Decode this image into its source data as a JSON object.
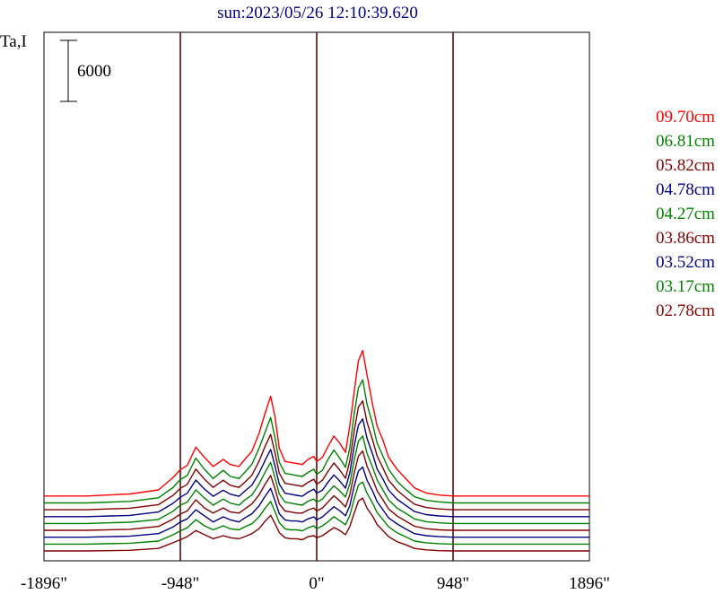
{
  "chart_data": {
    "type": "line",
    "title": "sun:2023/05/26 12:10:39.620",
    "ylabel": "Ta,I",
    "scale_bar_label": "6000",
    "xlim": [
      -1896,
      1896
    ],
    "x_ticks": [
      {
        "value": -1896,
        "label": "-1896\""
      },
      {
        "value": -948,
        "label": "-948\""
      },
      {
        "value": 0,
        "label": "0\""
      },
      {
        "value": 948,
        "label": "948\""
      },
      {
        "value": 1896,
        "label": "1896\""
      }
    ],
    "vertical_lines": [
      -948,
      0,
      948
    ],
    "grid": false,
    "legend_position": "right",
    "x": [
      -1896,
      -1600,
      -1300,
      -1100,
      -1000,
      -948,
      -900,
      -840,
      -780,
      -720,
      -650,
      -600,
      -540,
      -500,
      -450,
      -400,
      -360,
      -320,
      -290,
      -260,
      -220,
      -180,
      -140,
      -100,
      -60,
      -20,
      0,
      40,
      80,
      120,
      160,
      200,
      230,
      260,
      290,
      320,
      350,
      390,
      420,
      460,
      500,
      560,
      620,
      680,
      760,
      850,
      948,
      1000,
      1100,
      1300,
      1600,
      1896
    ],
    "series": [
      {
        "name": "09.70cm",
        "color": "#ff0000",
        "offset": 5400,
        "values": [
          0,
          0,
          200,
          600,
          1800,
          2600,
          3000,
          4800,
          3800,
          2900,
          3600,
          3100,
          2900,
          3600,
          4400,
          6200,
          8100,
          9800,
          7800,
          4700,
          3400,
          3300,
          3200,
          3100,
          3600,
          3900,
          3400,
          3800,
          4900,
          5900,
          5200,
          4300,
          6900,
          10200,
          13300,
          14300,
          11900,
          8900,
          6900,
          5500,
          3800,
          2600,
          1700,
          800,
          300,
          100,
          0,
          0,
          0,
          0,
          0,
          0
        ]
      },
      {
        "name": "06.81cm",
        "color": "#008000",
        "offset": 4725,
        "values": [
          0,
          0,
          150,
          500,
          1500,
          2300,
          2700,
          4400,
          3300,
          2400,
          3200,
          2600,
          2400,
          3000,
          3800,
          5400,
          6900,
          8400,
          6400,
          4000,
          2900,
          2800,
          2700,
          2600,
          3000,
          3300,
          2800,
          3200,
          4300,
          5200,
          4400,
          3500,
          5400,
          8700,
          11300,
          12100,
          9700,
          7700,
          5900,
          4600,
          3300,
          2100,
          1300,
          600,
          250,
          100,
          0,
          0,
          0,
          0,
          0,
          0
        ]
      },
      {
        "name": "05.82cm",
        "color": "#800000",
        "offset": 4050,
        "values": [
          0,
          0,
          150,
          500,
          1400,
          2100,
          2500,
          4000,
          3000,
          2200,
          2900,
          2400,
          2200,
          2700,
          3400,
          4800,
          6200,
          7400,
          5600,
          3600,
          2600,
          2500,
          2400,
          2300,
          2700,
          3000,
          2500,
          2900,
          3800,
          4600,
          3900,
          3100,
          4800,
          7700,
          10100,
          10700,
          8600,
          6800,
          5300,
          4100,
          2900,
          1900,
          1200,
          550,
          220,
          80,
          0,
          0,
          0,
          0,
          0,
          0
        ]
      },
      {
        "name": "04.78cm",
        "color": "#000080",
        "offset": 3375,
        "values": [
          0,
          0,
          120,
          450,
          1300,
          1900,
          2300,
          3600,
          2700,
          2000,
          2600,
          2200,
          2000,
          2500,
          3100,
          4300,
          5500,
          6600,
          5000,
          3200,
          2300,
          2200,
          2100,
          2000,
          2400,
          2700,
          2300,
          2600,
          3400,
          4100,
          3500,
          2800,
          4300,
          6900,
          9000,
          9600,
          7700,
          6100,
          4700,
          3700,
          2600,
          1700,
          1100,
          500,
          200,
          70,
          0,
          0,
          0,
          0,
          0,
          0
        ]
      },
      {
        "name": "04.27cm",
        "color": "#008000",
        "offset": 2700,
        "values": [
          0,
          0,
          120,
          400,
          1200,
          1800,
          2100,
          3300,
          2500,
          1800,
          2400,
          2000,
          1800,
          2300,
          2800,
          3900,
          5000,
          6000,
          4500,
          2900,
          2100,
          2000,
          1900,
          1800,
          2200,
          2400,
          2100,
          2400,
          3100,
          3700,
          3200,
          2600,
          3900,
          6200,
          8100,
          8600,
          6900,
          5500,
          4300,
          3300,
          2300,
          1500,
          1000,
          450,
          180,
          60,
          0,
          0,
          0,
          0,
          0,
          0
        ]
      },
      {
        "name": "03.86cm",
        "color": "#800000",
        "offset": 2025,
        "values": [
          0,
          0,
          100,
          380,
          1100,
          1600,
          1900,
          3000,
          2200,
          1700,
          2200,
          1800,
          1700,
          2100,
          2600,
          3500,
          4500,
          5400,
          4100,
          2600,
          1900,
          1800,
          1700,
          1700,
          2000,
          2200,
          1900,
          2200,
          2800,
          3400,
          2900,
          2300,
          3500,
          5600,
          7300,
          7800,
          6300,
          5000,
          3900,
          3000,
          2100,
          1400,
          900,
          400,
          160,
          50,
          0,
          0,
          0,
          0,
          0,
          0
        ]
      },
      {
        "name": "03.52cm",
        "color": "#000080",
        "offset": 1350,
        "values": [
          0,
          0,
          100,
          350,
          1000,
          1500,
          1800,
          2700,
          2100,
          1500,
          2000,
          1700,
          1500,
          1900,
          2300,
          3100,
          4000,
          4800,
          3600,
          2300,
          1700,
          1600,
          1600,
          1500,
          1800,
          2000,
          1700,
          2000,
          2500,
          3000,
          2600,
          2100,
          3100,
          5000,
          6500,
          6900,
          5600,
          4500,
          3500,
          2700,
          1900,
          1300,
          800,
          350,
          150,
          50,
          0,
          0,
          0,
          0,
          0,
          0
        ]
      },
      {
        "name": "03.17cm",
        "color": "#008000",
        "offset": 675,
        "values": [
          0,
          0,
          80,
          300,
          900,
          1300,
          1600,
          2400,
          1800,
          1400,
          1800,
          1500,
          1400,
          1700,
          2000,
          2700,
          3500,
          4200,
          3200,
          2100,
          1500,
          1400,
          1400,
          1300,
          1600,
          1800,
          1500,
          1800,
          2200,
          2700,
          2300,
          1900,
          2800,
          4400,
          5800,
          6100,
          5000,
          4000,
          3100,
          2400,
          1700,
          1100,
          700,
          300,
          130,
          40,
          0,
          0,
          0,
          0,
          0,
          0
        ]
      },
      {
        "name": "02.78cm",
        "color": "#800000",
        "offset": 0,
        "values": [
          0,
          0,
          60,
          250,
          800,
          1100,
          1400,
          2000,
          1600,
          1200,
          1500,
          1300,
          1200,
          1400,
          1700,
          2200,
          2900,
          3500,
          2700,
          1800,
          1300,
          1200,
          1200,
          1100,
          1400,
          1500,
          1300,
          1500,
          1900,
          2300,
          2000,
          1600,
          2400,
          3700,
          4900,
          5200,
          4200,
          3400,
          2600,
          2000,
          1400,
          900,
          600,
          250,
          110,
          30,
          0,
          0,
          0,
          0,
          0,
          0
        ]
      }
    ]
  }
}
